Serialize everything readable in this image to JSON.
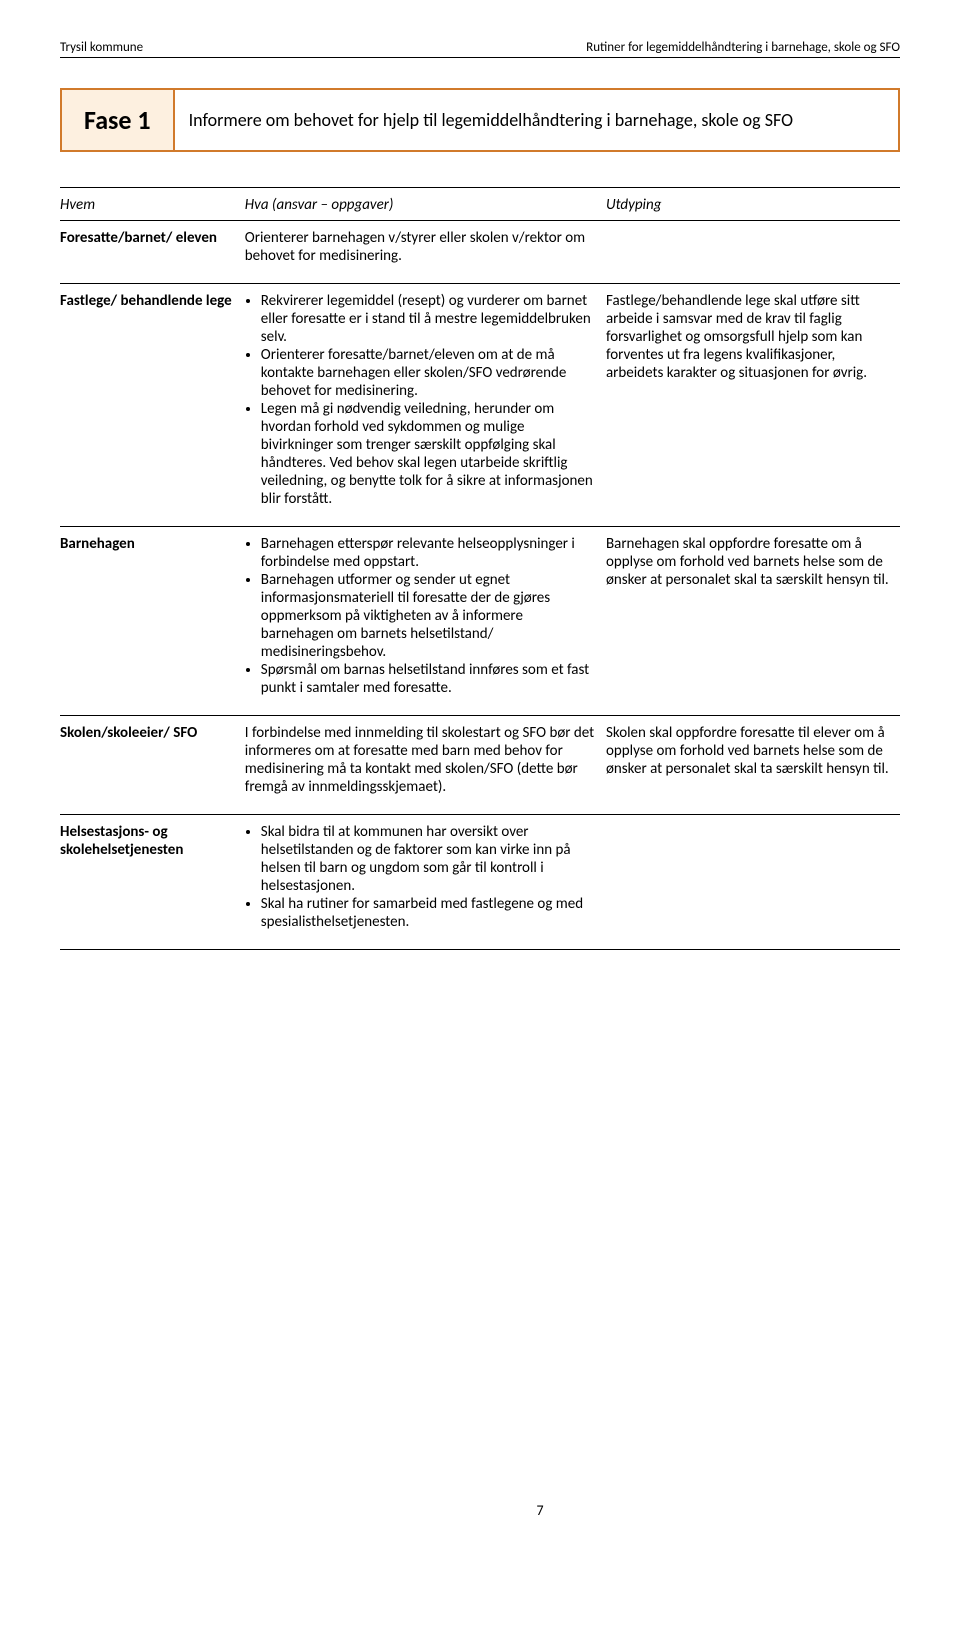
{
  "header": {
    "left": "Trysil kommune",
    "right": "Rutiner for legemiddelhåndtering i barnehage, skole og SFO"
  },
  "phase": {
    "label": "Fase 1",
    "text": "Informere om behovet for hjelp til legemiddelhåndtering i barnehage, skole og SFO"
  },
  "table": {
    "head": {
      "c1": "Hvem",
      "c2": "Hva (ansvar – oppgaver)",
      "c3": "Utdyping"
    },
    "rows": [
      {
        "who": "Foresatte/barnet/ eleven",
        "what_plain": "Orienterer barnehagen v/styrer eller skolen v/rektor om behovet for medisinering.",
        "extra": ""
      },
      {
        "who": "Fastlege/ behandlende lege",
        "bullets": [
          "Rekvirerer legemiddel (resept) og vurderer om barnet eller foresatte er i stand til å mestre legemiddelbruken selv.",
          "Orienterer foresatte/barnet/eleven om at de må kontakte barnehagen eller skolen/SFO vedrørende behovet for medisinering.",
          "Legen må gi nødvendig veiledning, herunder om hvordan forhold ved sykdommen og mulige bivirkninger som trenger særskilt oppfølging skal håndteres. Ved behov skal legen utarbeide skriftlig veiledning, og benytte tolk for å sikre at informasjonen blir forstått."
        ],
        "extra": "Fastlege/behandlende lege skal utføre sitt arbeide i samsvar med de krav til faglig forsvarlighet og omsorgsfull hjelp som kan forventes ut fra legens kvalifikasjoner, arbeidets karakter og situasjonen for øvrig."
      },
      {
        "who": "Barnehagen",
        "bullets": [
          "Barnehagen etterspør relevante helseopplysninger i forbindelse med oppstart.",
          "Barnehagen utformer og sender ut egnet informasjonsmateriell til foresatte der de gjøres oppmerksom på viktigheten av å informere barnehagen om barnets helsetilstand/ medisineringsbehov.",
          "Spørsmål om barnas helsetilstand innføres som et fast punkt i samtaler med foresatte."
        ],
        "extra": "Barnehagen skal oppfordre foresatte om å opplyse om forhold ved barnets helse som de ønsker at personalet skal ta særskilt hensyn til."
      },
      {
        "who": "Skolen/skoleeier/ SFO",
        "what_plain": "I forbindelse med innmelding til skolestart og SFO bør det informeres om at foresatte med barn med behov for medisinering må ta kontakt med skolen/SFO (dette bør fremgå av innmeldingsskjemaet).",
        "extra": "Skolen skal oppfordre foresatte til elever om å opplyse om forhold ved barnets helse som de ønsker at personalet skal ta særskilt hensyn til."
      },
      {
        "who": "Helsestasjons- og skolehelsetjenesten",
        "bullets": [
          "Skal bidra til at kommunen har oversikt over helsetilstanden og de faktorer som kan virke inn på helsen til barn og ungdom som går til kontroll i helsestasjonen.",
          "Skal ha rutiner for samarbeid med fastlegene og med spesialisthelsetjenesten."
        ],
        "extra": ""
      }
    ]
  },
  "page_number": "7",
  "colors": {
    "accent_border": "#d17a2b",
    "accent_bg": "#fdf0e0",
    "text": "#000000",
    "background": "#ffffff"
  }
}
